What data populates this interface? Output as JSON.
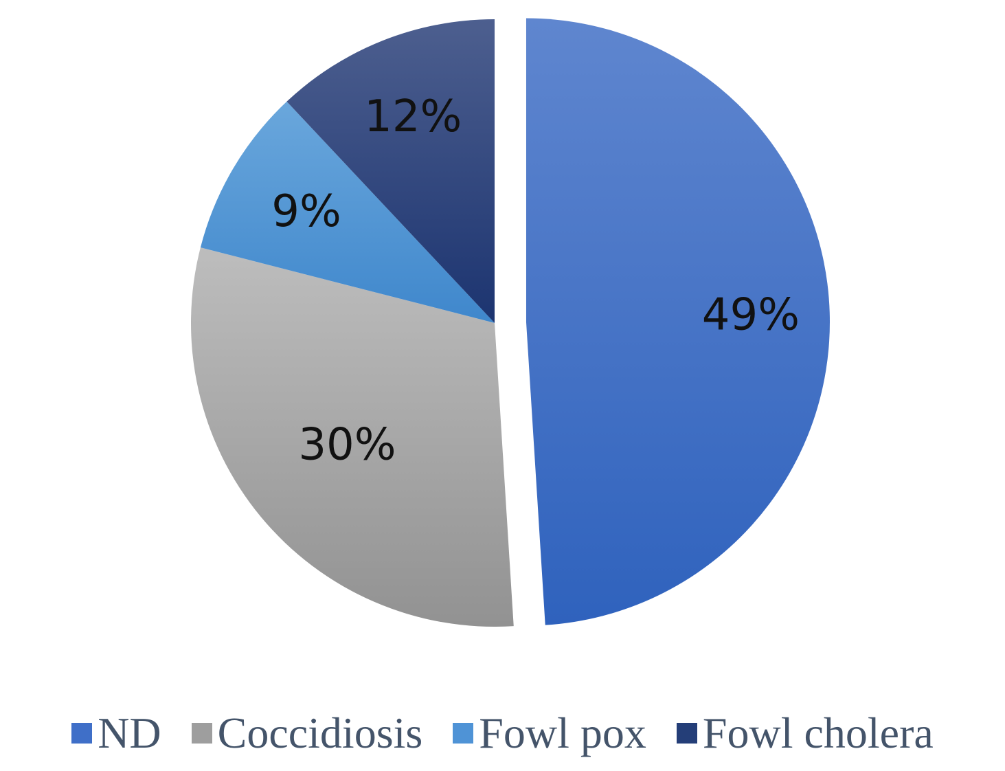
{
  "chart_data": {
    "type": "pie",
    "categories": [
      "ND",
      "Coccidiosis",
      "Fowl pox",
      "Fowl cholera"
    ],
    "values": [
      49,
      30,
      9,
      12
    ],
    "data_labels": [
      "49%",
      "30%",
      "9%",
      "12%"
    ],
    "colors": {
      "ND": [
        "#5f86cf",
        "#2f62bd"
      ],
      "Coccidiosis": [
        "#bdbdbd",
        "#929292"
      ],
      "Fowl pox": [
        "#6aa7dc",
        "#3f87cc"
      ],
      "Fowl cholera": [
        "#4d5f8f",
        "#1c3470"
      ]
    },
    "exploded": "ND",
    "start_angle": "12 o'clock",
    "direction": "clockwise",
    "legend_position": "bottom"
  },
  "legend": {
    "items": [
      {
        "label": "ND",
        "color": "#3f6fc8"
      },
      {
        "label": "Coccidiosis",
        "color": "#9e9e9e"
      },
      {
        "label": "Fowl pox",
        "color": "#4f93d6"
      },
      {
        "label": "Fowl cholera",
        "color": "#243e78"
      }
    ]
  }
}
